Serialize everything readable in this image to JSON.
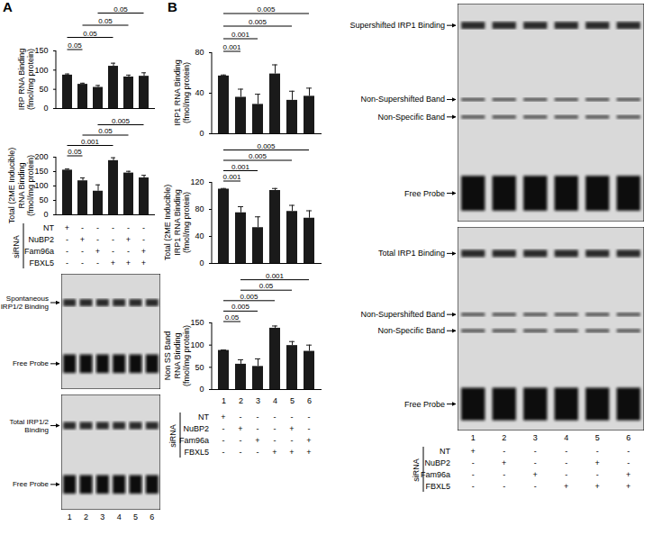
{
  "panel_labels": [
    "A",
    "B"
  ],
  "chart_data": [
    {
      "type": "bar",
      "y_label": [
        "IRP RNA Binding",
        "(fmol/mg protein)"
      ],
      "categories": [
        null,
        null,
        null,
        null,
        null,
        null
      ],
      "values": [
        87,
        63,
        55,
        110,
        82,
        84
      ],
      "errors": [
        3,
        3,
        5,
        8,
        5,
        9
      ],
      "color": "#1a1a1a",
      "ylim": [
        0,
        150
      ],
      "yticks": [
        0,
        50,
        100,
        150
      ],
      "tick_labels": "y",
      "significance": [
        {
          "from": 3,
          "to": 6,
          "label": "0.05"
        },
        {
          "from": 2,
          "to": 5,
          "label": "0.05"
        },
        {
          "from": 1,
          "to": 4,
          "label": "0.05"
        },
        {
          "from": 1,
          "to": 2,
          "label": "0.05"
        }
      ]
    },
    {
      "type": "bar",
      "y_label": [
        "Total (2ME Inducible)",
        "RNA Binding",
        "(fmol/mg protein)"
      ],
      "categories": [
        null,
        null,
        null,
        null,
        null,
        null
      ],
      "values": [
        155,
        118,
        82,
        188,
        145,
        128
      ],
      "errors": [
        4,
        10,
        22,
        10,
        6,
        9
      ],
      "color": "#1a1a1a",
      "ylim": [
        0,
        200
      ],
      "yticks": [
        0,
        50,
        100,
        150,
        200
      ],
      "tick_labels": "y",
      "significance": [
        {
          "from": 3,
          "to": 6,
          "label": "0.005"
        },
        {
          "from": 2,
          "to": 5,
          "label": "0.05"
        },
        {
          "from": 1,
          "to": 4,
          "label": "0.001"
        },
        {
          "from": 1,
          "to": 2,
          "label": "0.05"
        }
      ]
    },
    {
      "type": "bar",
      "y_label": [
        "IRP1 RNA Binding",
        "(fmol/mg protein)"
      ],
      "categories": [
        null,
        null,
        null,
        null,
        null,
        null
      ],
      "values": [
        57,
        36,
        29,
        59,
        33,
        37
      ],
      "errors": [
        1,
        8,
        10,
        9,
        9,
        8
      ],
      "color": "#1a1a1a",
      "ylim": [
        0,
        80
      ],
      "yticks": [
        0,
        40,
        80
      ],
      "tick_labels": "y",
      "significance": [
        {
          "from": 1,
          "to": 6,
          "label": "0.005"
        },
        {
          "from": 1,
          "to": 5,
          "label": "0.005"
        },
        {
          "from": 1,
          "to": 3,
          "label": "0.001"
        },
        {
          "from": 1,
          "to": 2,
          "label": "0.001"
        }
      ]
    },
    {
      "type": "bar",
      "y_label": [
        "Total (2ME Inducible)",
        "IRP1 RNA Binding",
        "(fmol/mg protein)"
      ],
      "categories": [
        null,
        null,
        null,
        null,
        null,
        null
      ],
      "values": [
        110,
        75,
        53,
        108,
        77,
        67
      ],
      "errors": [
        1,
        9,
        16,
        3,
        9,
        11
      ],
      "color": "#1a1a1a",
      "ylim": [
        0,
        120
      ],
      "yticks": [
        0,
        40,
        80,
        120
      ],
      "tick_labels": "y",
      "significance": [
        {
          "from": 1,
          "to": 6,
          "label": "0.005"
        },
        {
          "from": 1,
          "to": 5,
          "label": "0.005"
        },
        {
          "from": 1,
          "to": 3,
          "label": "0.001"
        },
        {
          "from": 1,
          "to": 2,
          "label": "0.001"
        }
      ]
    },
    {
      "type": "bar",
      "y_label": [
        "Non SS Band",
        "RNA Binding",
        "(fmol/mg protein)"
      ],
      "categories": [
        "1",
        "2",
        "3",
        "4",
        "5",
        "6"
      ],
      "values": [
        88,
        57,
        52,
        138,
        99,
        86
      ],
      "errors": [
        1,
        10,
        17,
        5,
        9,
        14
      ],
      "color": "#1a1a1a",
      "ylim": [
        0,
        150
      ],
      "yticks": [
        0,
        50,
        100,
        150
      ],
      "significance": [
        {
          "from": 2,
          "to": 6,
          "label": "0.001"
        },
        {
          "from": 2,
          "to": 5,
          "label": "0.05"
        },
        {
          "from": 1,
          "to": 4,
          "label": "0.005"
        },
        {
          "from": 1,
          "to": 3,
          "label": "0.005"
        },
        {
          "from": 1,
          "to": 2,
          "label": "0.05"
        }
      ]
    }
  ],
  "tables": [
    {
      "label": "siRNA",
      "rows": [
        {
          "name": "NT",
          "marks": [
            "+",
            "-",
            "-",
            "-",
            "-",
            "-"
          ]
        },
        {
          "name": "NuBP2",
          "marks": [
            "-",
            "+",
            "-",
            "-",
            "+",
            "-"
          ]
        },
        {
          "name": "Fam96a",
          "marks": [
            "-",
            "-",
            "+",
            "-",
            "-",
            "+"
          ]
        },
        {
          "name": "FBXL5",
          "marks": [
            "-",
            "-",
            "-",
            "+",
            "+",
            "+"
          ]
        }
      ]
    },
    {
      "label": "siRNA",
      "rows": [
        {
          "name": "NT",
          "marks": [
            "+",
            "-",
            "-",
            "-",
            "-",
            "-"
          ]
        },
        {
          "name": "NuBP2",
          "marks": [
            "-",
            "+",
            "-",
            "-",
            "+",
            "-"
          ]
        },
        {
          "name": "Fam96a",
          "marks": [
            "-",
            "-",
            "+",
            "-",
            "-",
            "+"
          ]
        },
        {
          "name": "FBXL5",
          "marks": [
            "-",
            "-",
            "-",
            "+",
            "+",
            "+"
          ]
        }
      ]
    },
    {
      "label": "siRNA",
      "rows": [
        {
          "name": "NT",
          "marks": [
            "+",
            "-",
            "-",
            "-",
            "-",
            "-"
          ]
        },
        {
          "name": "NuBP2",
          "marks": [
            "-",
            "+",
            "-",
            "-",
            "+",
            "-"
          ]
        },
        {
          "name": "Fam96a",
          "marks": [
            "-",
            "-",
            "+",
            "-",
            "-",
            "+"
          ]
        },
        {
          "name": "FBXL5",
          "marks": [
            "-",
            "-",
            "-",
            "+",
            "+",
            "+"
          ]
        }
      ]
    }
  ],
  "gels": [
    {
      "bands": [
        "Spontaneous IRP1/2 Binding",
        "Free Probe"
      ]
    },
    {
      "bands": [
        "Total IRP1/2 Binding",
        "Free Probe"
      ],
      "lanes": [
        "1",
        "2",
        "3",
        "4",
        "5",
        "6"
      ]
    },
    {
      "bands": [
        "Supershifted IRP1 Binding",
        "Non-Supershifted Band",
        "Non-Specific Band",
        "Free Probe"
      ]
    },
    {
      "bands": [
        "Total IRP1 Binding",
        "Non-Supershifted Band",
        "Non-Specific Band",
        "Free Probe"
      ],
      "lanes": [
        "1",
        "2",
        "3",
        "4",
        "5",
        "6"
      ]
    }
  ]
}
